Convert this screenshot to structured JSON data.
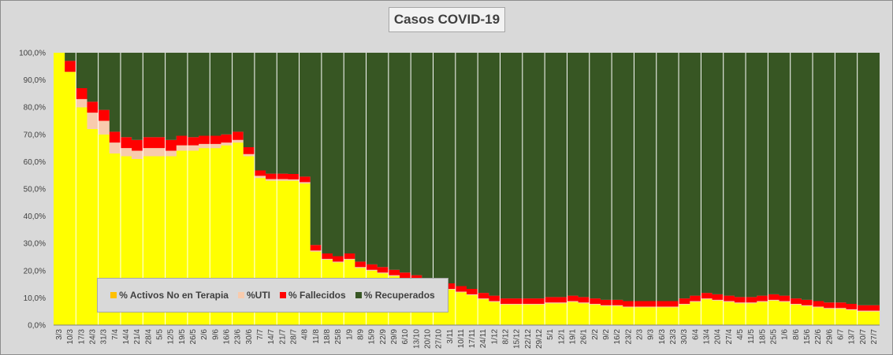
{
  "chart_data": {
    "type": "area",
    "stacked": true,
    "title": "Casos  COVID-19",
    "y_ticks": [
      "0,0%",
      "10,0%",
      "20,0%",
      "30,0%",
      "40,0%",
      "50,0%",
      "60,0%",
      "70,0%",
      "80,0%",
      "90,0%",
      "100,0%"
    ],
    "ylim": [
      0,
      100
    ],
    "x_ticks": [
      "3/3",
      "10/3",
      "17/3",
      "24/3",
      "31/3",
      "7/4",
      "14/4",
      "21/4",
      "28/4",
      "5/5",
      "12/5",
      "19/5",
      "26/5",
      "2/6",
      "9/6",
      "16/6",
      "23/6",
      "30/6",
      "7/7",
      "14/7",
      "21/7",
      "28/7",
      "4/8",
      "11/8",
      "18/8",
      "25/8",
      "1/9",
      "8/9",
      "15/9",
      "22/9",
      "29/9",
      "6/10",
      "13/10",
      "20/10",
      "27/10",
      "3/11",
      "10/11",
      "17/11",
      "24/11",
      "1/12",
      "8/12",
      "15/12",
      "22/12",
      "29/12",
      "5/1",
      "12/1",
      "19/1",
      "26/1",
      "2/2",
      "9/2",
      "16/2",
      "23/2",
      "2/3",
      "9/3",
      "16/3",
      "23/3",
      "30/3",
      "6/4",
      "13/4",
      "20/4",
      "27/4",
      "4/5",
      "11/5",
      "18/5",
      "25/5",
      "1/6",
      "8/6",
      "15/6",
      "22/6",
      "29/6",
      "6/7",
      "13/7",
      "20/7",
      "27/7"
    ],
    "series": [
      {
        "name": "% Activos No en Terapia",
        "color": "#ffff00",
        "values": [
          100,
          93,
          80,
          72,
          70,
          63,
          62,
          61,
          62,
          62,
          62,
          64,
          64,
          65,
          65,
          66,
          67,
          62,
          54,
          53,
          53,
          53,
          52,
          27,
          24,
          23,
          24,
          21,
          20,
          19,
          18,
          17,
          16,
          15,
          14,
          13,
          12,
          11,
          9.5,
          8.5,
          7.5,
          7.5,
          7.5,
          7.5,
          8,
          8,
          8.5,
          8,
          7.5,
          7,
          7,
          6.5,
          6.5,
          6.5,
          6.5,
          6.5,
          7.5,
          8.5,
          9.5,
          9,
          8.5,
          8,
          8,
          8.5,
          9,
          8.5,
          7.5,
          7,
          6.5,
          6,
          6,
          5.5,
          5,
          5
        ]
      },
      {
        "name": "%UTI",
        "color": "#f8cbad",
        "values": [
          0,
          0,
          3,
          6,
          5,
          4,
          3,
          3,
          3,
          3,
          2,
          2,
          2,
          1.5,
          1.5,
          1,
          1,
          0.8,
          0.8,
          0.6,
          0.6,
          0.5,
          0.5,
          0.4,
          0.3,
          0.3,
          0.3,
          0.3,
          0.3,
          0.3,
          0.3,
          0.3,
          0.3,
          0.3,
          0.3,
          0.3,
          0.3,
          0.3,
          0.3,
          0.3,
          0.3,
          0.3,
          0.3,
          0.3,
          0.3,
          0.3,
          0.3,
          0.3,
          0.3,
          0.3,
          0.3,
          0.3,
          0.3,
          0.3,
          0.3,
          0.3,
          0.3,
          0.3,
          0.3,
          0.3,
          0.3,
          0.3,
          0.3,
          0.3,
          0.3,
          0.3,
          0.3,
          0.3,
          0.3,
          0.3,
          0.3,
          0.3,
          0.3,
          0.3
        ]
      },
      {
        "name": "% Fallecidos",
        "color": "#ff0000",
        "values": [
          0,
          4,
          4,
          4,
          4,
          4,
          4,
          4,
          4,
          4,
          4,
          3.5,
          3,
          3,
          3,
          3,
          3,
          2.5,
          2,
          2,
          2,
          2,
          2,
          2,
          2,
          2,
          2,
          2,
          2,
          2,
          2,
          2,
          2,
          2,
          2,
          2,
          2,
          2,
          2,
          2,
          2,
          2,
          2,
          2,
          2,
          2,
          2,
          2,
          2,
          2,
          2,
          2,
          2,
          2,
          2,
          2,
          2,
          2,
          2,
          2,
          2,
          2,
          2,
          2,
          2,
          2,
          2,
          2,
          2,
          2,
          2,
          2,
          2,
          2
        ]
      },
      {
        "name": "% Recuperados",
        "color": "#375623",
        "values": [
          0,
          3,
          13,
          18,
          21,
          29,
          31,
          32,
          31,
          31,
          32,
          30.5,
          31,
          30.5,
          30.5,
          30,
          29,
          34.7,
          43.2,
          44.4,
          44.4,
          44.5,
          45.5,
          70.6,
          73.7,
          74.7,
          73.7,
          76.7,
          77.7,
          78.7,
          79.7,
          80.7,
          81.7,
          82.7,
          83.7,
          84.7,
          85.7,
          86.7,
          88.2,
          89.2,
          90.2,
          90.2,
          90.2,
          90.2,
          89.7,
          89.7,
          89.2,
          89.7,
          90.2,
          90.7,
          90.7,
          91.2,
          91.2,
          91.2,
          91.2,
          91.2,
          90.2,
          89.2,
          88.2,
          88.7,
          89.2,
          89.7,
          89.7,
          89.2,
          88.7,
          89.2,
          90.2,
          90.7,
          91.2,
          91.7,
          91.7,
          92.2,
          92.7,
          92.7
        ]
      }
    ],
    "legend_position": "bottom-left",
    "grid": "vertical"
  }
}
